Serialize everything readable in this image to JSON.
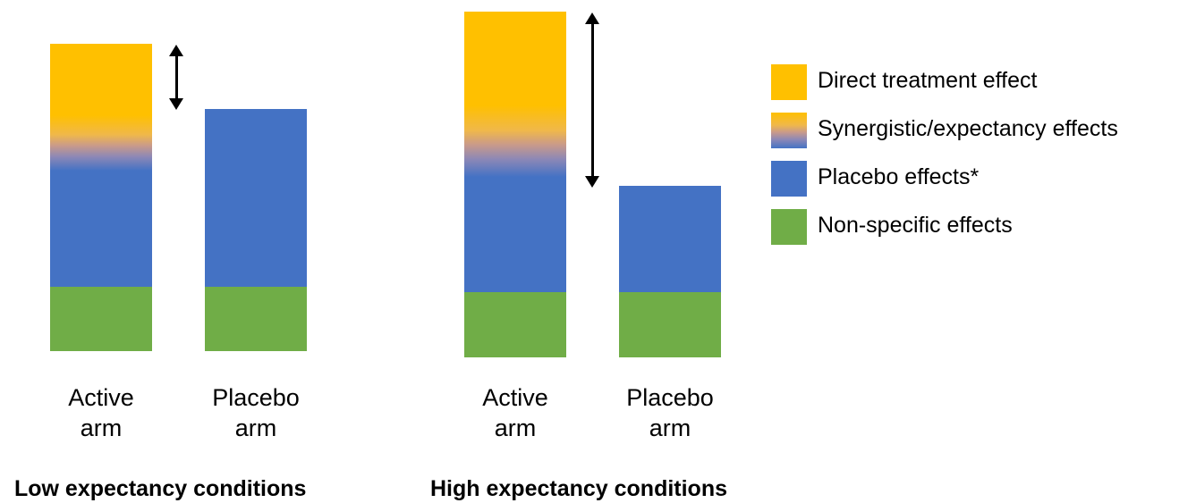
{
  "panels": [
    {
      "title": "Low expectancy conditions",
      "active_label_line1": "Active",
      "active_label_line2": "arm",
      "placebo_label_line1": "Placebo",
      "placebo_label_line2": "arm"
    },
    {
      "title": "High expectancy conditions",
      "active_label_line1": "Active",
      "active_label_line2": "arm",
      "placebo_label_line1": "Placebo",
      "placebo_label_line2": "arm"
    }
  ],
  "legend": [
    {
      "label": "Direct treatment effect",
      "color": "#ffc000"
    },
    {
      "label": "Synergistic/expectancy effects",
      "color": "gradient"
    },
    {
      "label": "Placebo effects*",
      "color": "#4472c4"
    },
    {
      "label": "Non-specific effects",
      "color": "#70ad47"
    }
  ]
}
